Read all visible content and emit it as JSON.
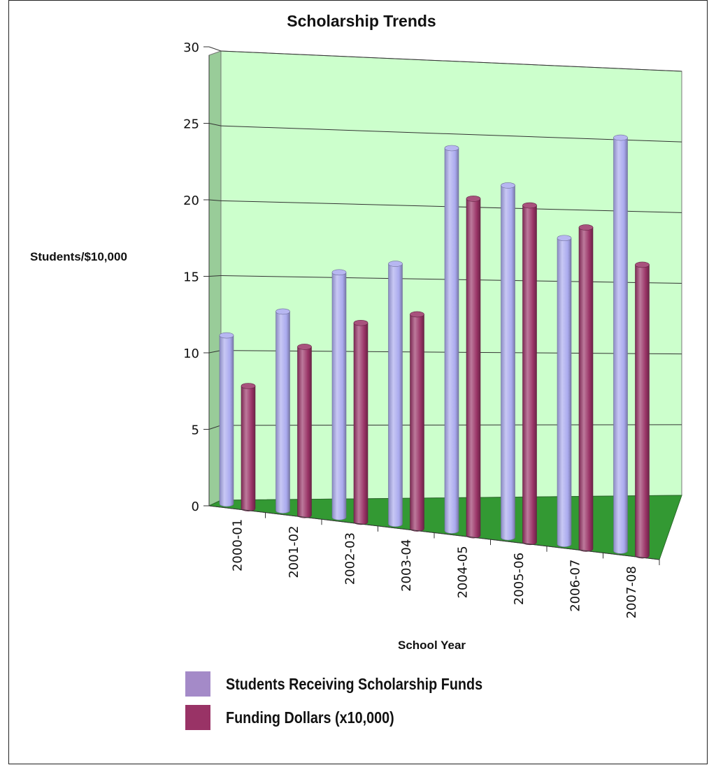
{
  "chart_data": {
    "type": "bar",
    "title": "Scholarship Trends",
    "xlabel": "School Year",
    "ylabel": "Students/$10,000",
    "categories": [
      "2000-01",
      "2001-02",
      "2002-03",
      "2003-04",
      "2004-05",
      "2005-06",
      "2006-07",
      "2007-08"
    ],
    "series": [
      {
        "name": "Students Receiving Scholarship Funds",
        "values": [
          11,
          13,
          16,
          17,
          25,
          23,
          20,
          27
        ],
        "color": "#aaaaee"
      },
      {
        "name": "Funding Dollars (x10,000)",
        "values": [
          8,
          11,
          13,
          14,
          22,
          22,
          21,
          19
        ],
        "color": "#993366"
      }
    ],
    "ylim": [
      0,
      30
    ],
    "yticks": [
      "0",
      "5",
      "10",
      "15",
      "20",
      "25",
      "30"
    ],
    "grid": true,
    "legend_position": "bottom",
    "colors": {
      "back_wall": "#ccffcc",
      "side_wall": "#99cc99",
      "floor": "#339933"
    }
  }
}
